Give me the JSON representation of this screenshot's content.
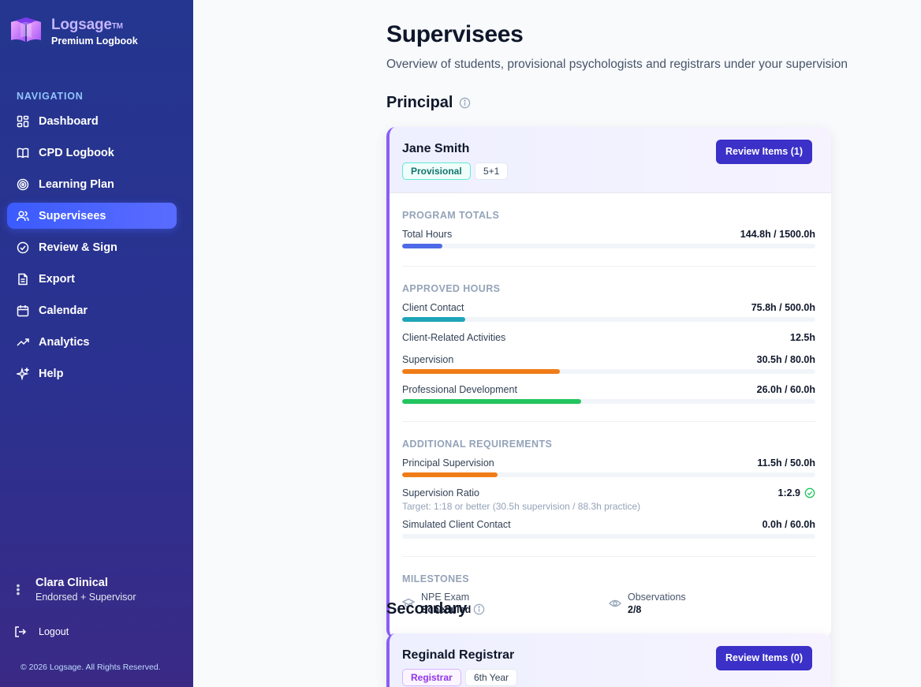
{
  "brand": {
    "name": "Logsage",
    "tm": "TM",
    "subtitle": "Premium Logbook"
  },
  "nav": {
    "heading": "NAVIGATION",
    "items": [
      {
        "label": "Dashboard",
        "icon": "dashboard-icon"
      },
      {
        "label": "CPD Logbook",
        "icon": "book-icon"
      },
      {
        "label": "Learning Plan",
        "icon": "target-icon"
      },
      {
        "label": "Supervisees",
        "icon": "users-icon",
        "active": true
      },
      {
        "label": "Review & Sign",
        "icon": "check-circle-icon"
      },
      {
        "label": "Export",
        "icon": "file-icon"
      },
      {
        "label": "Calendar",
        "icon": "calendar-icon"
      },
      {
        "label": "Analytics",
        "icon": "trending-icon"
      },
      {
        "label": "Help",
        "icon": "sparkle-icon"
      }
    ]
  },
  "user": {
    "name": "Clara Clinical",
    "role": "Endorsed + Supervisor"
  },
  "logout_label": "Logout",
  "copyright": "© 2026 Logsage. All Rights Reserved.",
  "page": {
    "title": "Supervisees",
    "subtitle": "Overview of students, provisional psychologists and registrars under your supervision"
  },
  "principal": {
    "section_title": "Principal",
    "name": "Jane Smith",
    "status": "Provisional",
    "program": "5+1",
    "review_button": "Review Items (1)",
    "program_totals": {
      "title": "PROGRAM TOTALS",
      "total_hours": {
        "label": "Total Hours",
        "value": "144.8h / 1500.0h",
        "fraction": 0.0965,
        "color": "#4f6ae6"
      }
    },
    "approved_hours": {
      "title": "APPROVED HOURS",
      "client_contact": {
        "label": "Client Contact",
        "value": "75.8h / 500.0h",
        "fraction": 0.152,
        "color": "#1fa5b8"
      },
      "client_related": {
        "label": "Client-Related Activities",
        "value": "12.5h"
      },
      "supervision": {
        "label": "Supervision",
        "value": "30.5h / 80.0h",
        "fraction": 0.381,
        "color": "#f07c18"
      },
      "professional_development": {
        "label": "Professional Development",
        "value": "26.0h / 60.0h",
        "fraction": 0.433,
        "color": "#22c55e"
      }
    },
    "additional": {
      "title": "ADDITIONAL REQUIREMENTS",
      "principal_supervision": {
        "label": "Principal Supervision",
        "value": "11.5h / 50.0h",
        "fraction": 0.23,
        "color": "#f07c18"
      },
      "supervision_ratio": {
        "label": "Supervision Ratio",
        "value": "1:2.9",
        "target": "Target: 1:18 or better (30.5h supervision / 88.3h practice)",
        "status_color": "#22c55e"
      },
      "simulated": {
        "label": "Simulated Client Contact",
        "value": "0.0h / 60.0h",
        "fraction": 0,
        "color": "#f07c18"
      }
    },
    "milestones": {
      "title": "MILESTONES",
      "npe": {
        "label": "NPE Exam",
        "value": "Scheduled",
        "icon": "graduation-cap-icon"
      },
      "observations": {
        "label": "Observations",
        "value": "2/8",
        "icon": "eye-icon"
      }
    }
  },
  "secondary": {
    "section_title": "Secondary",
    "name": "Reginald Registrar",
    "status": "Registrar",
    "program": "6th Year",
    "review_button": "Review Items (0)"
  }
}
